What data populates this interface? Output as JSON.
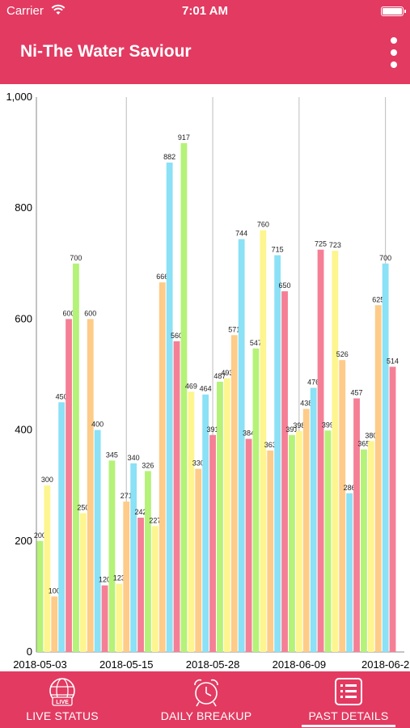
{
  "status_bar": {
    "carrier": "Carrier",
    "time": "7:01 AM",
    "wifi_icon": "wifi-icon",
    "battery_icon": "battery-icon"
  },
  "app_bar": {
    "title": "Ni-The Water Saviour",
    "menu_icon": "more-vertical-icon"
  },
  "colors": {
    "brand": "#e33a61",
    "palette": [
      "#b5f278",
      "#fdf58f",
      "#fecb89",
      "#8be1f5",
      "#f57f95"
    ]
  },
  "chart_data": {
    "type": "bar",
    "y_ticks": [
      "0",
      "200",
      "400",
      "600",
      "800",
      "1,000"
    ],
    "ylim": [
      0,
      1000
    ],
    "x_labels": [
      "2018-05-03",
      "2018-05-15",
      "2018-05-28",
      "2018-06-09",
      "2018-06-2"
    ],
    "label_at_bar": [
      0,
      12,
      24,
      36,
      48
    ],
    "vertical_grid": true,
    "values": [
      200,
      300,
      100,
      450,
      600,
      700,
      250,
      600,
      400,
      120,
      345,
      123,
      271,
      340,
      242,
      326,
      227,
      666,
      882,
      560,
      917,
      469,
      330,
      464,
      391,
      487,
      493,
      571,
      744,
      384,
      547,
      760,
      363,
      715,
      650,
      391,
      398,
      438,
      476,
      725,
      399,
      723,
      526,
      286,
      457,
      365,
      380,
      625,
      700,
      514
    ],
    "data_labels": [
      "200",
      "300",
      "100",
      "450",
      "600",
      "700",
      "250",
      "600",
      "400",
      "120",
      "345",
      "123",
      "271",
      "340",
      "242",
      "326",
      "227",
      "666",
      "882",
      "560",
      "917",
      "469",
      "330",
      "464",
      "391",
      "487",
      "493",
      "571",
      "744",
      "384",
      "547",
      "760",
      "363",
      "715",
      "650",
      "391",
      "398",
      "438",
      "476",
      "725",
      "399",
      "723",
      "526",
      "286",
      "457",
      "365",
      "380",
      "625",
      "700",
      "514"
    ]
  },
  "bottom_nav": {
    "tabs": [
      {
        "label": "LIVE STATUS",
        "icon": "live-globe-icon"
      },
      {
        "label": "DAILY BREAKUP",
        "icon": "alarm-clock-icon"
      },
      {
        "label": "PAST DETAILS",
        "icon": "list-icon"
      }
    ],
    "active_tab": 2
  }
}
